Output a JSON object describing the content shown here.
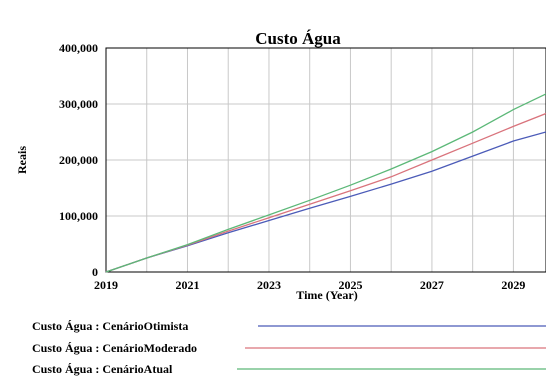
{
  "chart_data": {
    "type": "line",
    "title": "Custo Água",
    "xlabel": "Time (Year)",
    "ylabel": "Reais",
    "xlim": [
      2019,
      2029.8
    ],
    "ylim": [
      0,
      400000
    ],
    "x_ticks": [
      2019,
      2021,
      2023,
      2025,
      2027,
      2029
    ],
    "x_tick_labels": [
      "2019",
      "2021",
      "2023",
      "2025",
      "2027",
      "2029"
    ],
    "y_ticks": [
      0,
      100000,
      200000,
      300000,
      400000
    ],
    "y_tick_labels": [
      "0",
      "100,000",
      "200,000",
      "300,000",
      "400,000"
    ],
    "grid": true,
    "legend_position": "bottom-left",
    "x": [
      2019,
      2020,
      2021,
      2022,
      2023,
      2024,
      2025,
      2026,
      2027,
      2028,
      2029,
      2029.8
    ],
    "series": [
      {
        "name": "Custo Água : CenárioOtimista",
        "color": "#4b5bb8",
        "values": [
          0,
          25000,
          47000,
          70000,
          92000,
          114000,
          135000,
          157000,
          180000,
          207000,
          234000,
          250000
        ]
      },
      {
        "name": "Custo Água : CenárioModerado",
        "color": "#d9737c",
        "values": [
          0,
          25000,
          48000,
          73000,
          97000,
          121000,
          145000,
          170000,
          200000,
          230000,
          260000,
          283000
        ]
      },
      {
        "name": "Custo Água : CenárioAtual",
        "color": "#5cb878",
        "values": [
          0,
          25000,
          49000,
          76000,
          102000,
          128000,
          155000,
          184000,
          215000,
          250000,
          290000,
          318000
        ]
      }
    ]
  }
}
